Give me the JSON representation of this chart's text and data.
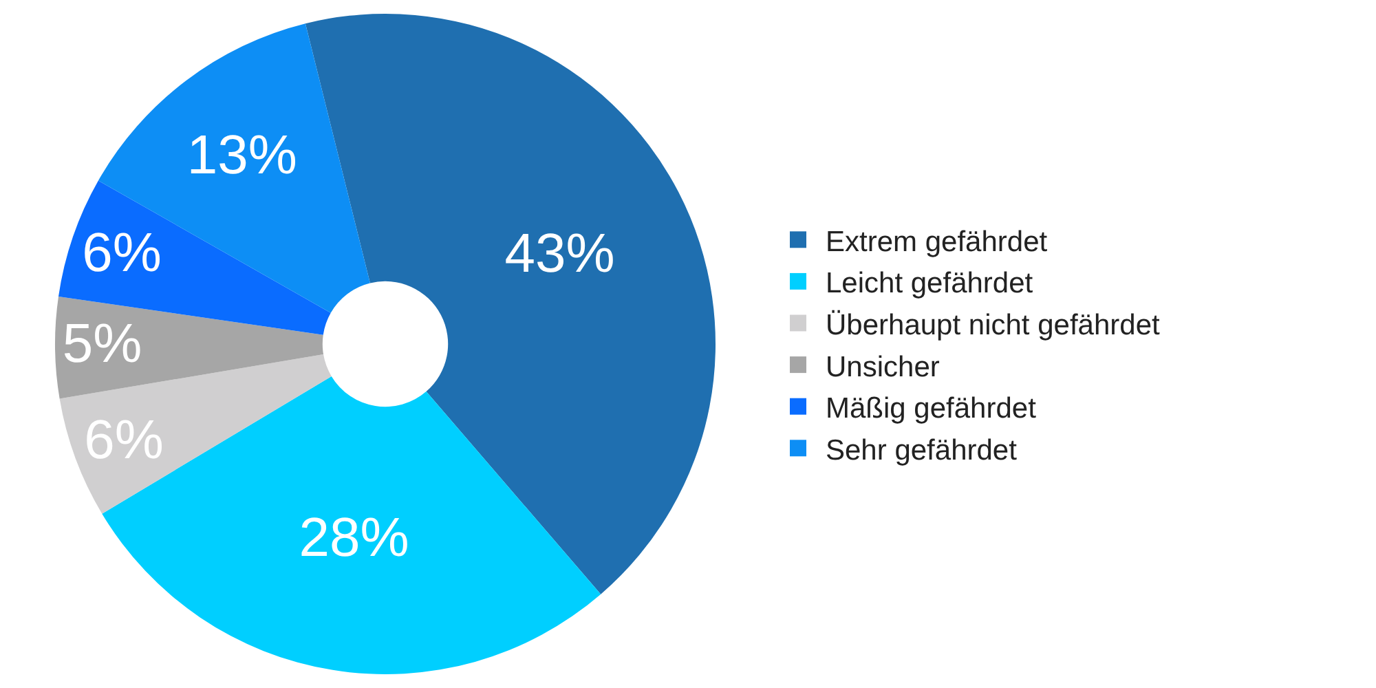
{
  "chart_data": {
    "type": "donut",
    "categories": [
      "Extrem gefährdet",
      "Leicht gefährdet",
      "Überhaupt nicht gefährdet",
      "Unsicher",
      "Mäßig gefährdet",
      "Sehr gefährdet"
    ],
    "values": [
      43,
      28,
      6,
      5,
      6,
      13
    ],
    "colors": [
      "#1f6fb0",
      "#00cfff",
      "#d0cfd0",
      "#a6a6a6",
      "#0a6cff",
      "#0d8ef5"
    ],
    "value_labels": [
      "43%",
      "28%",
      "6%",
      "5%",
      "6%",
      "13%"
    ],
    "legend": "right"
  }
}
